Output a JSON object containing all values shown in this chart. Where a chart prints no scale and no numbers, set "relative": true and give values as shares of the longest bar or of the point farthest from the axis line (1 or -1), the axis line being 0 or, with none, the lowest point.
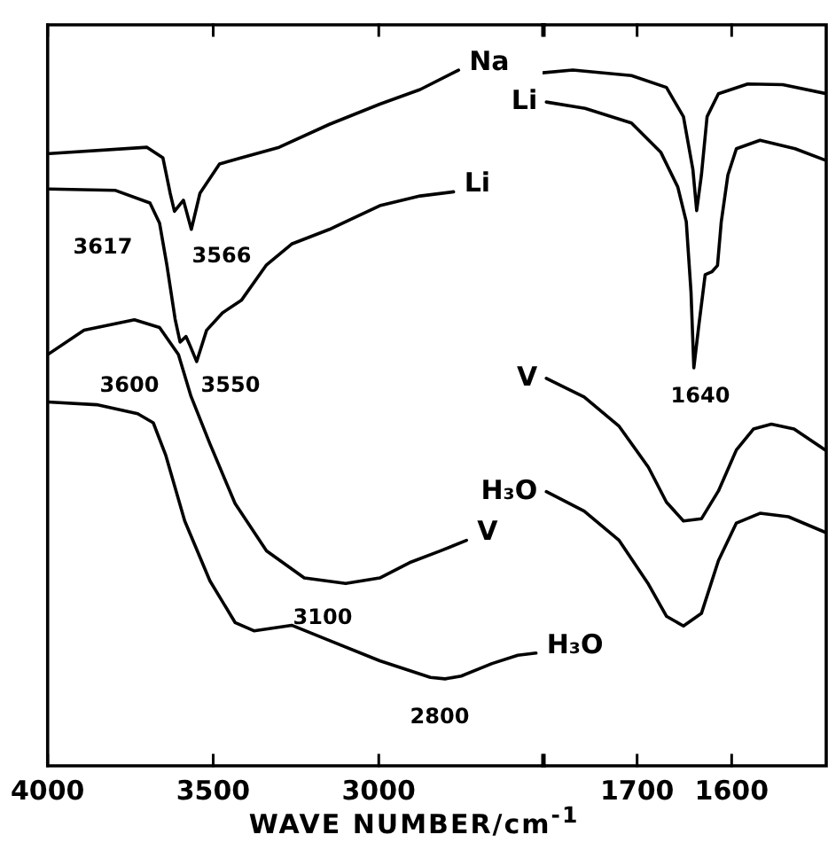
{
  "chart_data": [
    {
      "type": "line",
      "relative": true,
      "tick_labels": "x",
      "xlabel": "WAVE NUMBER/cm$^{-1}$",
      "xlim": [
        4000,
        2500
      ],
      "xticks": [
        4000,
        3500,
        3000,
        {
          "value": 2500,
          "label": null
        }
      ],
      "series": [
        {
          "name": "Na",
          "color": "#000000",
          "x": [
            3994,
            3700,
            3652,
            3630,
            3617,
            3590,
            3566,
            3540,
            3481,
            3415,
            3301,
            3149,
            2997,
            2875,
            2759
          ],
          "values": [
            0.88,
            0.889,
            0.874,
            0.823,
            0.797,
            0.813,
            0.771,
            0.823,
            0.865,
            0.874,
            0.889,
            0.922,
            0.951,
            0.972,
            1
          ]
        },
        {
          "name": "Li",
          "color": "#000000",
          "x": [
            3994,
            3795,
            3691,
            3662,
            3640,
            3615,
            3600,
            3582,
            3570,
            3550,
            3520,
            3472,
            3415,
            3339,
            3263,
            3149,
            2997,
            2875,
            2774
          ],
          "values": [
            0.829,
            0.827,
            0.809,
            0.78,
            0.72,
            0.642,
            0.609,
            0.617,
            0.604,
            0.581,
            0.626,
            0.651,
            0.669,
            0.72,
            0.75,
            0.771,
            0.805,
            0.819,
            0.825
          ]
        },
        {
          "name": "V",
          "color": "#000000",
          "x": [
            4000,
            3890,
            3738,
            3662,
            3605,
            3567,
            3510,
            3434,
            3339,
            3225,
            3100,
            2997,
            2907,
            2813,
            2735
          ],
          "values": [
            0.591,
            0.626,
            0.641,
            0.63,
            0.591,
            0.531,
            0.463,
            0.377,
            0.309,
            0.27,
            0.262,
            0.27,
            0.292,
            0.309,
            0.324
          ]
        },
        {
          "name": "H₃O",
          "color": "#000000",
          "x": [
            4000,
            3852,
            3728,
            3681,
            3643,
            3586,
            3510,
            3434,
            3377,
            3263,
            3149,
            2997,
            2844,
            2800,
            2751,
            2658,
            2580,
            2525
          ],
          "values": [
            0.523,
            0.519,
            0.506,
            0.493,
            0.446,
            0.352,
            0.266,
            0.206,
            0.194,
            0.202,
            0.18,
            0.151,
            0.127,
            0.125,
            0.129,
            0.147,
            0.159,
            0.162
          ]
        }
      ],
      "annotations": [
        "3617",
        "3566",
        "3600",
        "3550",
        "3100",
        "2800"
      ]
    },
    {
      "type": "line",
      "relative": true,
      "tick_labels": "x",
      "xlim": [
        1800,
        1500
      ],
      "xticks": [
        {
          "value": 1800,
          "label": null
        },
        1700,
        1600
      ],
      "series": [
        {
          "color": "#000000",
          "x": [
            1800,
            1768,
            1706,
            1669,
            1651,
            1641,
            1637,
            1632,
            1626,
            1614,
            1583,
            1546,
            1500
          ],
          "values": [
            0.996,
            1,
            0.992,
            0.975,
            0.933,
            0.857,
            0.798,
            0.849,
            0.933,
            0.966,
            0.98,
            0.979,
            0.966
          ]
        },
        {
          "name": "Li",
          "color": "#000000",
          "x": [
            1796,
            1755,
            1706,
            1675,
            1657,
            1648,
            1643,
            1640,
            1635,
            1628,
            1621,
            1615,
            1611,
            1604,
            1595,
            1570,
            1533,
            1500
          ],
          "values": [
            0.954,
            0.945,
            0.924,
            0.882,
            0.832,
            0.782,
            0.681,
            0.572,
            0.63,
            0.706,
            0.71,
            0.719,
            0.782,
            0.849,
            0.887,
            0.899,
            0.887,
            0.87
          ]
        },
        {
          "name": "V",
          "color": "#000000",
          "x": [
            1796,
            1756,
            1719,
            1688,
            1669,
            1651,
            1632,
            1614,
            1595,
            1577,
            1558,
            1534,
            1500
          ],
          "values": [
            0.557,
            0.53,
            0.488,
            0.429,
            0.379,
            0.352,
            0.355,
            0.395,
            0.454,
            0.484,
            0.491,
            0.484,
            0.453
          ]
        },
        {
          "name": "H₃O",
          "color": "#000000",
          "x": [
            1796,
            1756,
            1719,
            1688,
            1669,
            1651,
            1632,
            1614,
            1595,
            1570,
            1540,
            1500
          ],
          "values": [
            0.394,
            0.366,
            0.324,
            0.261,
            0.215,
            0.201,
            0.219,
            0.295,
            0.349,
            0.363,
            0.358,
            0.335
          ]
        }
      ],
      "annotations": [
        "1640"
      ]
    }
  ]
}
